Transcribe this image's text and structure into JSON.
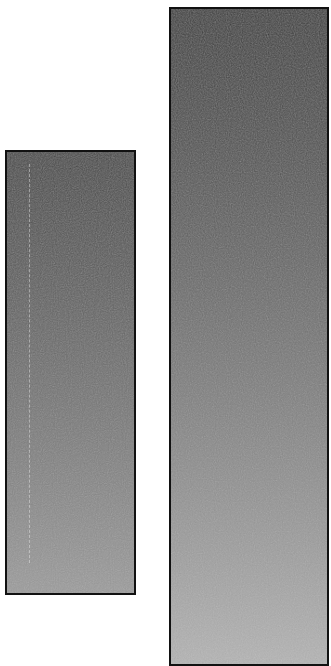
{
  "panels": [
    {
      "id": "left",
      "gradient_top": "#3a3a3a",
      "gradient_bottom": "#9a9a9a"
    },
    {
      "id": "right",
      "gradient_top": "#2a2a2a",
      "gradient_bottom": "#b4b4b4"
    }
  ],
  "colors": {
    "border": "#111111",
    "background": "#ffffff"
  }
}
